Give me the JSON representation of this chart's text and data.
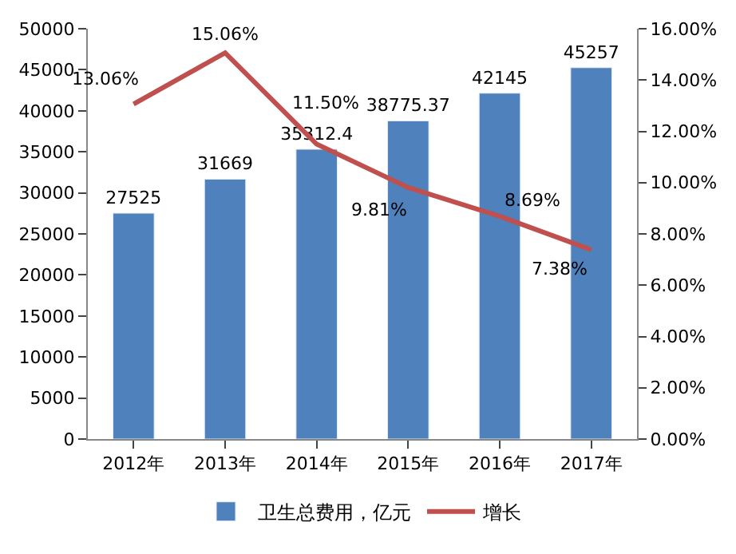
{
  "chart_data": {
    "type": "bar",
    "categories": [
      "2012年",
      "2013年",
      "2014年",
      "2015年",
      "2016年",
      "2017年"
    ],
    "series": [
      {
        "name": "卫生总费用，亿元",
        "color": "#4f81bd",
        "values": [
          27525,
          31669,
          35312.4,
          38775.37,
          42145,
          45257
        ],
        "value_labels": [
          "27525",
          "31669",
          "35312.4",
          "38775.37",
          "42145",
          "45257"
        ]
      },
      {
        "name": "增长",
        "type": "line",
        "axis": "y2",
        "color": "#c0504d",
        "values": [
          13.06,
          15.06,
          11.5,
          9.81,
          8.69,
          7.38
        ],
        "value_labels": [
          "13.06%",
          "15.06%",
          "11.50%",
          "9.81%",
          "8.69%",
          "7.38%"
        ]
      }
    ],
    "ylim": [
      0,
      50000
    ],
    "yticks": [
      0,
      5000,
      10000,
      15000,
      20000,
      25000,
      30000,
      35000,
      40000,
      45000,
      50000
    ],
    "y2lim": [
      0,
      16
    ],
    "y2ticks": [
      {
        "value": 0,
        "label": "0.00%"
      },
      {
        "value": 2,
        "label": "2.00%"
      },
      {
        "value": 4,
        "label": "4.00%"
      },
      {
        "value": 6,
        "label": "6.00%"
      },
      {
        "value": 8,
        "label": "8.00%"
      },
      {
        "value": 10,
        "label": "10.00%"
      },
      {
        "value": 12,
        "label": "12.00%"
      },
      {
        "value": 14,
        "label": "14.00%"
      },
      {
        "value": 16,
        "label": "16.00%"
      }
    ],
    "legend": "bottom",
    "marker": "none",
    "line_style": "solid"
  }
}
